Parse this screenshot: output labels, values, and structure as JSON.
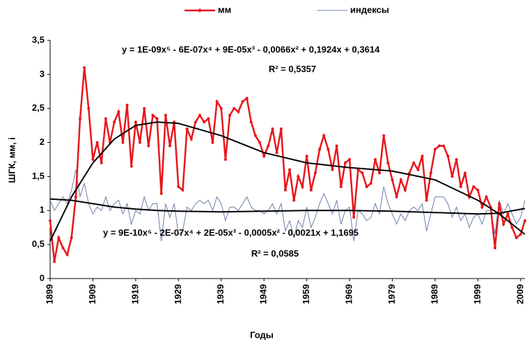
{
  "chart_data": {
    "type": "line",
    "x_label": "Годы",
    "y_label": "ШГК, мм, і",
    "x": [
      1899,
      1900,
      1901,
      1902,
      1903,
      1904,
      1905,
      1906,
      1907,
      1908,
      1909,
      1910,
      1911,
      1912,
      1913,
      1914,
      1915,
      1916,
      1917,
      1918,
      1919,
      1920,
      1921,
      1922,
      1923,
      1924,
      1925,
      1926,
      1927,
      1928,
      1929,
      1930,
      1931,
      1932,
      1933,
      1934,
      1935,
      1936,
      1937,
      1938,
      1939,
      1940,
      1941,
      1942,
      1943,
      1944,
      1945,
      1946,
      1947,
      1948,
      1949,
      1950,
      1951,
      1952,
      1953,
      1954,
      1955,
      1956,
      1957,
      1958,
      1959,
      1960,
      1961,
      1962,
      1963,
      1964,
      1965,
      1966,
      1967,
      1968,
      1969,
      1970,
      1971,
      1972,
      1973,
      1974,
      1975,
      1976,
      1977,
      1978,
      1979,
      1980,
      1981,
      1982,
      1983,
      1984,
      1985,
      1986,
      1987,
      1988,
      1989,
      1990,
      1991,
      1992,
      1993,
      1994,
      1995,
      1996,
      1997,
      1998,
      1999,
      2000,
      2001,
      2002,
      2003,
      2004,
      2005,
      2006,
      2007,
      2008,
      2009,
      2010
    ],
    "series": [
      {
        "name": "мм",
        "color": "#e8161b",
        "markers": true,
        "values": [
          0.85,
          0.25,
          0.6,
          0.45,
          0.35,
          0.6,
          1.2,
          2.35,
          3.1,
          2.5,
          1.75,
          2.0,
          1.7,
          2.35,
          2.0,
          2.3,
          2.45,
          2.0,
          2.55,
          1.65,
          2.3,
          2.0,
          2.5,
          1.95,
          2.4,
          2.35,
          1.25,
          2.4,
          1.95,
          2.3,
          1.35,
          1.3,
          2.2,
          2.05,
          2.3,
          2.4,
          2.3,
          2.35,
          2.0,
          2.6,
          2.5,
          1.75,
          2.4,
          2.5,
          2.45,
          2.6,
          2.65,
          2.3,
          2.1,
          2.0,
          1.8,
          1.95,
          2.2,
          1.85,
          2.2,
          1.3,
          1.6,
          1.15,
          1.5,
          1.35,
          1.8,
          1.3,
          1.55,
          1.9,
          2.1,
          1.9,
          1.6,
          1.95,
          1.35,
          1.7,
          1.75,
          0.9,
          1.6,
          1.55,
          1.35,
          1.4,
          1.75,
          1.55,
          2.1,
          1.7,
          1.45,
          1.2,
          1.45,
          1.3,
          1.55,
          1.7,
          1.6,
          1.8,
          1.15,
          1.55,
          1.9,
          1.95,
          1.95,
          1.8,
          1.5,
          1.75,
          1.35,
          1.55,
          1.2,
          1.35,
          1.3,
          1.05,
          1.2,
          1.05,
          0.45,
          1.1,
          0.8,
          0.95,
          0.75,
          0.6,
          0.65,
          0.85
        ]
      },
      {
        "name": "индексы",
        "color": "#6b7fa8",
        "markers": false,
        "values": [
          1.15,
          1.0,
          1.1,
          1.2,
          1.1,
          1.3,
          1.6,
          1.2,
          1.4,
          1.1,
          0.95,
          1.05,
          1.0,
          1.2,
          1.0,
          1.1,
          1.15,
          0.95,
          1.1,
          0.8,
          1.0,
          0.95,
          1.2,
          1.0,
          1.1,
          1.1,
          0.55,
          1.1,
          0.9,
          1.1,
          0.65,
          0.7,
          1.05,
          1.0,
          1.1,
          1.15,
          1.1,
          1.15,
          1.0,
          1.2,
          1.1,
          0.85,
          1.05,
          1.05,
          1.0,
          1.1,
          1.2,
          1.05,
          1.0,
          1.0,
          0.95,
          1.0,
          1.1,
          0.95,
          1.1,
          0.7,
          0.85,
          0.6,
          0.85,
          0.75,
          1.05,
          0.75,
          0.9,
          1.1,
          1.25,
          1.1,
          0.95,
          1.15,
          0.8,
          1.0,
          1.05,
          0.55,
          1.0,
          0.95,
          0.85,
          0.9,
          1.1,
          0.95,
          1.35,
          1.1,
          0.95,
          0.8,
          0.95,
          0.85,
          1.0,
          1.05,
          1.0,
          1.1,
          0.7,
          0.95,
          1.2,
          1.2,
          1.2,
          1.1,
          0.9,
          1.05,
          0.85,
          0.95,
          0.75,
          0.9,
          0.95,
          0.8,
          1.0,
          1.0,
          0.65,
          1.15,
          0.95,
          1.1,
          0.95,
          0.8,
          0.9,
          1.15
        ]
      }
    ],
    "trendlines": [
      {
        "color": "#000000",
        "x": [
          1899,
          1904,
          1909,
          1914,
          1919,
          1924,
          1929,
          1939,
          1949,
          1959,
          1969,
          1979,
          1989,
          1999,
          2004,
          2010
        ],
        "values": [
          0.55,
          1.2,
          1.7,
          2.05,
          2.25,
          2.3,
          2.28,
          2.1,
          1.85,
          1.7,
          1.63,
          1.58,
          1.45,
          1.15,
          0.95,
          0.65
        ]
      },
      {
        "color": "#000000",
        "x": [
          1899,
          1904,
          1909,
          1914,
          1919,
          1924,
          1929,
          1939,
          1949,
          1959,
          1969,
          1979,
          1989,
          1999,
          2004,
          2010
        ],
        "values": [
          1.17,
          1.15,
          1.1,
          1.05,
          1.02,
          1.0,
          0.99,
          0.98,
          0.99,
          1.0,
          1.0,
          0.99,
          0.97,
          0.95,
          0.96,
          1.03
        ]
      }
    ],
    "annotations": [
      "y = 1E-09x⁵ - 6E-07x⁴ + 9E-05x³ - 0,0066x² + 0,1924x + 0,3614",
      "R² = 0,5357",
      "y = 9E-10x⁵ - 2E-07x⁴ + 2E-05x³ - 0,0005x² - 0,0021x + 1,1695",
      "R² = 0,0585"
    ],
    "xlim": [
      1899,
      2010
    ],
    "xticks": [
      1899,
      1909,
      1919,
      1929,
      1939,
      1949,
      1959,
      1969,
      1979,
      1989,
      1999,
      2009
    ],
    "ylim": [
      0,
      3.5
    ],
    "yticks": [
      0,
      {
        "value": 0.5,
        "label": "0,5"
      },
      1,
      {
        "value": 1.5,
        "label": "1,5"
      },
      2,
      {
        "value": 2.5,
        "label": "2,5"
      },
      3,
      {
        "value": 3.5,
        "label": "3,5"
      }
    ],
    "grid": false,
    "legend": "top"
  }
}
